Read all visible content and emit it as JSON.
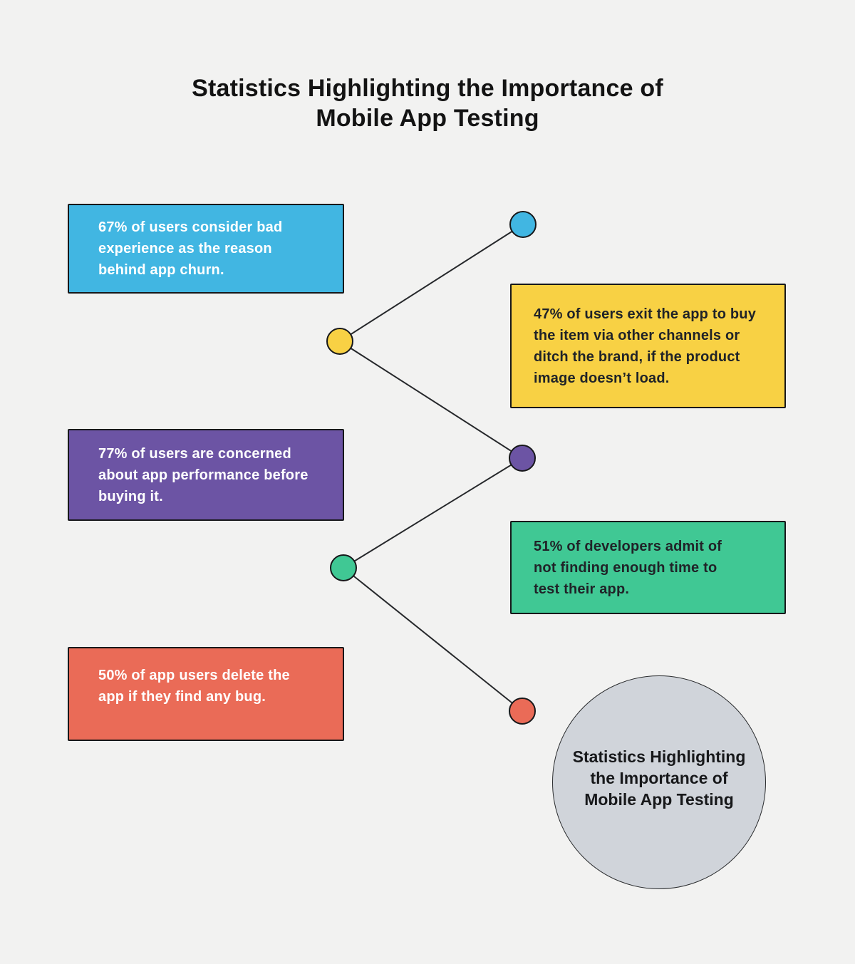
{
  "title": {
    "line1": "Statistics Highlighting the Importance of",
    "line2": "Mobile App Testing"
  },
  "background_color": "#f2f2f1",
  "connector_line_color": "#26282b",
  "cards": [
    {
      "name": "churn",
      "bg": "#41b6e2",
      "fg": "#ffffff",
      "lines": [
        "67% of users consider bad",
        "experience as the reason",
        "behind app churn."
      ]
    },
    {
      "name": "product-image",
      "bg": "#f8d144",
      "fg": "#202328",
      "lines": [
        "47% of users exit the app to buy",
        "the item via other channels or",
        "ditch the brand, if the product",
        "image doesn’t load."
      ]
    },
    {
      "name": "performance",
      "bg": "#6c54a4",
      "fg": "#ffffff",
      "lines": [
        "77% of users are concerned",
        "about app performance before",
        "buying it."
      ]
    },
    {
      "name": "testing-time",
      "bg": "#40c894",
      "fg": "#202328",
      "lines": [
        "51% of developers admit of",
        "not finding enough time to",
        "test their app."
      ]
    },
    {
      "name": "bug-delete",
      "bg": "#ea6b57",
      "fg": "#ffffff",
      "lines": [
        "50% of app users delete the",
        "app if they find any bug."
      ]
    }
  ],
  "dots": [
    {
      "color": "#41b6e2"
    },
    {
      "color": "#f8d144"
    },
    {
      "color": "#6c54a4"
    },
    {
      "color": "#40c894"
    },
    {
      "color": "#ea6b57"
    }
  ],
  "summary_circle": {
    "bg": "#d0d4da",
    "lines": [
      "Statistics Highlighting",
      "the Importance of",
      "Mobile App Testing"
    ]
  }
}
